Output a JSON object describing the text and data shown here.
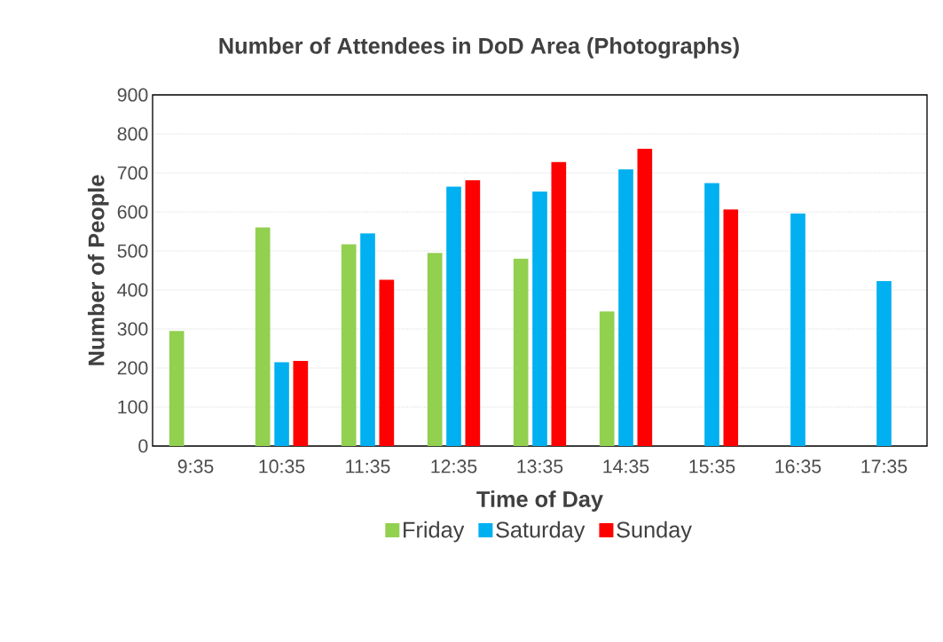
{
  "chart_data": {
    "type": "bar",
    "title": "Number of Attendees in DoD Area (Photographs)",
    "xlabel": "Time of Day",
    "ylabel": "Number of People",
    "categories": [
      "9:35",
      "10:35",
      "11:35",
      "12:35",
      "13:35",
      "14:35",
      "15:35",
      "16:35",
      "17:35"
    ],
    "series": [
      {
        "name": "Friday",
        "color": "#92d050",
        "values": [
          295,
          560,
          517,
          495,
          480,
          345,
          null,
          null,
          null
        ]
      },
      {
        "name": "Saturday",
        "color": "#00b0f0",
        "values": [
          null,
          215,
          545,
          665,
          652,
          709,
          674,
          596,
          423
        ]
      },
      {
        "name": "Sunday",
        "color": "#ff0000",
        "values": [
          null,
          218,
          426,
          681,
          728,
          762,
          606,
          null,
          null
        ]
      }
    ],
    "ylim": [
      0,
      900
    ],
    "yticks": [
      0,
      100,
      200,
      300,
      400,
      500,
      600,
      700,
      800,
      900
    ],
    "grid": "y",
    "legend": "bottom"
  }
}
